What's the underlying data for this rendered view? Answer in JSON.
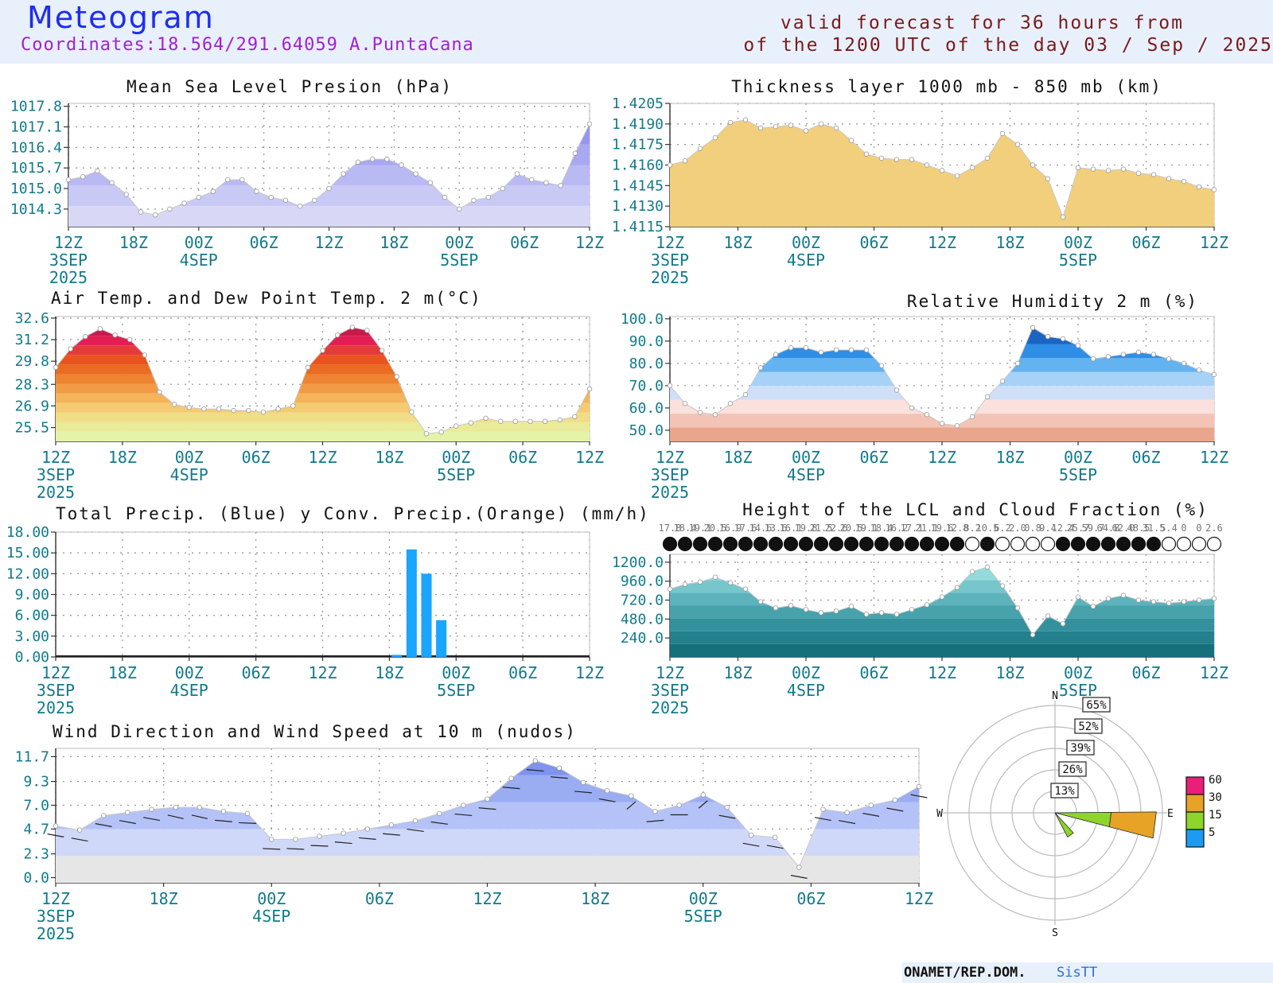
{
  "header": {
    "title": "Meteogram",
    "coordinates": "Coordinates:18.564/291.64059  A.PuntaCana",
    "valid_line1": "valid forecast for 36 hours from",
    "valid_line2": "of the 1200 UTC of the day 03 / Sep / 2025"
  },
  "footer": {
    "org": "ONAMET/REP.DOM.",
    "brand": "SisTT"
  },
  "time_axis": {
    "labels": [
      "12Z",
      "18Z",
      "00Z",
      "06Z",
      "12Z",
      "18Z",
      "00Z",
      "06Z",
      "12Z"
    ],
    "sub_labels": {
      "0": "3SEP",
      "2": "4SEP",
      "6": "5SEP"
    },
    "year": "2025"
  },
  "chart_data": [
    {
      "id": "mslp",
      "type": "area",
      "title": "Mean Sea Level Presion (hPa)",
      "yticks": [
        "1014.3",
        "1015.0",
        "1015.7",
        "1016.4",
        "1017.1",
        "1017.8"
      ],
      "ylim": [
        1013.7,
        1017.9
      ],
      "grid": true,
      "x_hours": [
        0,
        1,
        2,
        3,
        4,
        5,
        6,
        7,
        8,
        9,
        10,
        11,
        12,
        13,
        14,
        15,
        16,
        17,
        18,
        19,
        20,
        21,
        22,
        23,
        24,
        25,
        26,
        27,
        28,
        29,
        30,
        31,
        32,
        33,
        34,
        35,
        36
      ],
      "values": [
        1015.3,
        1015.4,
        1015.6,
        1015.2,
        1014.8,
        1014.2,
        1014.1,
        1014.3,
        1014.5,
        1014.7,
        1014.9,
        1015.3,
        1015.3,
        1014.9,
        1014.7,
        1014.6,
        1014.4,
        1014.6,
        1015.0,
        1015.5,
        1015.9,
        1016.0,
        1016.0,
        1015.8,
        1015.5,
        1015.2,
        1014.7,
        1014.3,
        1014.6,
        1014.7,
        1015.0,
        1015.5,
        1015.3,
        1015.2,
        1015.1,
        1016.2,
        1017.2
      ],
      "colors": [
        "#d8d8f6",
        "#c9c9f5",
        "#b9b9f4",
        "#a8a8f3",
        "#9696f1",
        "#8484ef"
      ]
    },
    {
      "id": "thickness",
      "type": "area",
      "title": "Thickness layer 1000 mb - 850 mb (km)",
      "yticks": [
        "1.4115",
        "1.4130",
        "1.4145",
        "1.4160",
        "1.4175",
        "1.4190",
        "1.4205"
      ],
      "ylim": [
        1.4115,
        1.4205
      ],
      "grid": true,
      "x_hours": [
        0,
        1,
        2,
        3,
        4,
        5,
        6,
        7,
        8,
        9,
        10,
        11,
        12,
        13,
        14,
        15,
        16,
        17,
        18,
        19,
        20,
        21,
        22,
        23,
        24,
        25,
        26,
        27,
        28,
        29,
        30,
        31,
        32,
        33,
        34,
        35,
        36
      ],
      "values": [
        1.416,
        1.4163,
        1.4172,
        1.418,
        1.4191,
        1.4193,
        1.4187,
        1.4188,
        1.4189,
        1.4185,
        1.419,
        1.4187,
        1.4178,
        1.4168,
        1.4165,
        1.4164,
        1.4164,
        1.416,
        1.4156,
        1.4152,
        1.4158,
        1.4165,
        1.4183,
        1.4175,
        1.416,
        1.415,
        1.4122,
        1.4158,
        1.4157,
        1.4156,
        1.4157,
        1.4154,
        1.4153,
        1.415,
        1.4148,
        1.4144,
        1.4142
      ],
      "colors": [
        "#f2cf7c"
      ]
    },
    {
      "id": "temp",
      "type": "area",
      "title": "Air Temp. and Dew Point Temp. 2 m(°C)",
      "yticks": [
        "25.5",
        "26.9",
        "28.3",
        "29.8",
        "31.2",
        "32.6"
      ],
      "ylim": [
        24.6,
        32.7
      ],
      "grid": true,
      "x_hours": [
        0,
        1,
        2,
        3,
        4,
        5,
        6,
        7,
        8,
        9,
        10,
        11,
        12,
        13,
        14,
        15,
        16,
        17,
        18,
        19,
        20,
        21,
        22,
        23,
        24,
        25,
        26,
        27,
        28,
        29,
        30,
        31,
        32,
        33,
        34,
        35,
        36
      ],
      "values": [
        29.4,
        30.6,
        31.4,
        31.9,
        31.5,
        31.2,
        30.2,
        27.8,
        27.0,
        26.8,
        26.7,
        26.7,
        26.6,
        26.6,
        26.5,
        26.7,
        26.9,
        29.4,
        30.5,
        31.5,
        32.0,
        31.8,
        30.5,
        28.8,
        26.5,
        25.1,
        25.2,
        25.6,
        25.8,
        26.1,
        25.9,
        25.9,
        25.9,
        25.9,
        26.0,
        26.2,
        28.0
      ],
      "colors": [
        "#e4f3a8",
        "#eaeb98",
        "#f1dd86",
        "#f4cb72",
        "#f4b45a",
        "#f29b45",
        "#ee8432",
        "#ea6b22",
        "#e9531f",
        "#e53a3a",
        "#e21e55",
        "#c81a4a",
        "#a11640"
      ]
    },
    {
      "id": "rh",
      "type": "area",
      "title": "Relative Humidity 2 m (%)",
      "yticks": [
        "50.0",
        "60.0",
        "70.0",
        "80.0",
        "90.0",
        "100.0"
      ],
      "ylim": [
        45.0,
        101.0
      ],
      "grid": true,
      "x_hours": [
        0,
        1,
        2,
        3,
        4,
        5,
        6,
        7,
        8,
        9,
        10,
        11,
        12,
        13,
        14,
        15,
        16,
        17,
        18,
        19,
        20,
        21,
        22,
        23,
        24,
        25,
        26,
        27,
        28,
        29,
        30,
        31,
        32,
        33,
        34,
        35,
        36
      ],
      "values": [
        70.0,
        62.0,
        58.0,
        57.0,
        62.0,
        66.0,
        78.0,
        84.0,
        87.0,
        87.0,
        85.0,
        86.0,
        86.0,
        86.0,
        79.0,
        68.0,
        60.0,
        57.0,
        53.0,
        52.0,
        56.0,
        65.0,
        72.0,
        80.0,
        96.0,
        92.0,
        91.0,
        88.0,
        82.0,
        83.0,
        84.0,
        85.0,
        84.0,
        82.0,
        80.0,
        77.0,
        75.0
      ],
      "colors": [
        "#e9a68c",
        "#f3c4b6",
        "#fbe1dd",
        "#cfdff8",
        "#a5d2f6",
        "#62b3f0",
        "#2f8ee6",
        "#1b64c4",
        "#123f98"
      ]
    },
    {
      "id": "precip",
      "type": "bar",
      "title": "Total Precip. (Blue) y Conv. Precip.(Orange) (mm/h)",
      "yticks": [
        "0.00",
        "3.00",
        "6.00",
        "9.00",
        "12.00",
        "15.00",
        "18.00"
      ],
      "ylim": [
        0,
        18
      ],
      "grid": true,
      "series": [
        {
          "name": "Total Precip. (Blue)",
          "color": "#1aa5ff",
          "x_hours": [
            23,
            24,
            25,
            26
          ],
          "values": [
            0.3,
            15.5,
            12.0,
            5.3
          ]
        },
        {
          "name": "Conv. Precip.(Orange)",
          "color": "#f5a623",
          "x_hours": [
            23,
            24,
            25,
            26
          ],
          "values": [
            0.0,
            0.0,
            0.0,
            0.0
          ]
        }
      ]
    },
    {
      "id": "lcl",
      "type": "area",
      "title": "Height of the LCL and Cloud Fraction (%)",
      "yticks": [
        "240.0",
        "480.0",
        "720.0",
        "960.0",
        "1200.0"
      ],
      "ylim": [
        0,
        1300
      ],
      "grid": true,
      "x_hours": [
        0,
        1,
        2,
        3,
        4,
        5,
        6,
        7,
        8,
        9,
        10,
        11,
        12,
        13,
        14,
        15,
        16,
        17,
        18,
        19,
        20,
        21,
        22,
        23,
        24,
        25,
        26,
        27,
        28,
        29,
        30,
        31,
        32,
        33,
        34,
        35,
        36
      ],
      "values": [
        860,
        920,
        950,
        1010,
        940,
        860,
        700,
        620,
        650,
        600,
        560,
        580,
        640,
        540,
        560,
        540,
        600,
        660,
        760,
        880,
        1080,
        1140,
        900,
        620,
        280,
        520,
        420,
        760,
        640,
        740,
        780,
        720,
        700,
        680,
        700,
        720,
        740
      ],
      "colors": [
        "#16707c",
        "#23808d",
        "#33919d",
        "#47a2ac",
        "#5cb3bb",
        "#77c6cc",
        "#94dbdc",
        "#f5dc6e"
      ],
      "cloud_fraction_labels": [
        "17.8",
        "18.4",
        "19.1",
        "20.5",
        "16.9",
        "17.6",
        "14.6",
        "13.6",
        "16.1",
        "19.8",
        "21.5",
        "22.6",
        "20.5",
        "19.1",
        "18.4",
        "16.2",
        "17.1",
        "21.1",
        "19.6",
        "12.8",
        "8.2",
        "10.5",
        "6.2",
        "2.0",
        "0.8",
        "9.4",
        "12.4",
        "25.7",
        "59.7",
        "64.8",
        "62.0",
        "48.5",
        "31.5",
        "5.4",
        "0",
        "0",
        "2.6"
      ]
    },
    {
      "id": "wind",
      "type": "area",
      "title": "Wind Direction and Wind Speed at 10 m (nudos)",
      "yticks": [
        "0.0",
        "2.3",
        "4.7",
        "7.0",
        "9.3",
        "11.7"
      ],
      "ylim": [
        -0.5,
        12.5
      ],
      "grid": true,
      "x_hours": [
        0,
        1,
        2,
        3,
        4,
        5,
        6,
        7,
        8,
        9,
        10,
        11,
        12,
        13,
        14,
        15,
        16,
        17,
        18,
        19,
        20,
        21,
        22,
        23,
        24,
        25,
        26,
        27,
        28,
        29,
        30,
        31,
        32,
        33,
        34,
        35,
        36
      ],
      "values": [
        5.0,
        4.6,
        6.0,
        6.3,
        6.6,
        6.8,
        6.8,
        6.4,
        6.2,
        3.7,
        3.7,
        4.0,
        4.3,
        4.7,
        5.1,
        5.5,
        6.2,
        7.0,
        7.6,
        9.6,
        11.3,
        10.6,
        9.2,
        8.4,
        7.9,
        6.4,
        7.0,
        8.0,
        6.8,
        4.1,
        3.9,
        1.0,
        6.6,
        6.3,
        7.0,
        7.5,
        8.8
      ],
      "colors": [
        "#e6e6e6",
        "#d0d8fa",
        "#b4c2f7",
        "#9aadf3",
        "#7d93ee"
      ],
      "direction_deg": [
        110,
        110,
        110,
        110,
        110,
        115,
        115,
        100,
        95,
        95,
        95,
        95,
        100,
        100,
        100,
        105,
        105,
        100,
        100,
        100,
        100,
        100,
        100,
        110,
        210,
        260,
        270,
        210,
        110,
        110,
        110,
        110,
        110,
        110,
        110,
        110,
        110
      ]
    },
    {
      "id": "windrose",
      "type": "windrose",
      "compass": [
        "N",
        "E",
        "S",
        "W"
      ],
      "ring_labels": [
        "13%",
        "26%",
        "39%",
        "52%",
        "65%"
      ],
      "legend_values": [
        "60",
        "30",
        "15",
        "5"
      ],
      "legend_colors": [
        "#ea1f7a",
        "#e6a326",
        "#8fd42a",
        "#1b9cf2"
      ],
      "petals": [
        {
          "dir_deg": 97,
          "segments_pct": [
            0.0,
            34.0,
            65.0
          ]
        },
        {
          "dir_deg": 145,
          "segments_pct": [
            0.0,
            16.5,
            0.0
          ]
        }
      ]
    }
  ]
}
